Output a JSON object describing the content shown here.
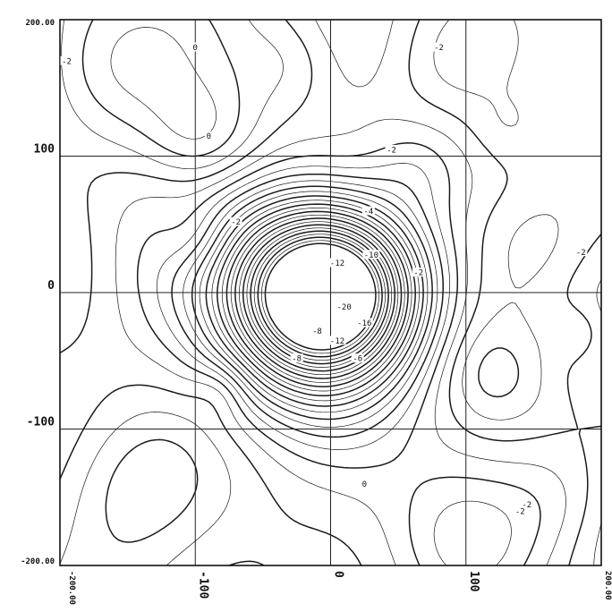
{
  "chart_data": {
    "type": "contour",
    "title": "",
    "xlabel": "",
    "ylabel": "",
    "xlim": [
      -200,
      200
    ],
    "ylim": [
      -200,
      200
    ],
    "grid": true,
    "x_ticks": [
      {
        "value": -200,
        "label": "-200.00"
      },
      {
        "value": -100,
        "label": "-100"
      },
      {
        "value": 0,
        "label": "0"
      },
      {
        "value": 100,
        "label": "100"
      },
      {
        "value": 200,
        "label": "200.00"
      }
    ],
    "y_ticks": [
      {
        "value": 200,
        "label": "200.00"
      },
      {
        "value": 100,
        "label": "100"
      },
      {
        "value": 0,
        "label": "0"
      },
      {
        "value": -100,
        "label": "-100"
      },
      {
        "value": -200,
        "label": "-200.00"
      }
    ],
    "contour_labels": [
      {
        "x": -100,
        "y": 180,
        "text": "0"
      },
      {
        "x": -195,
        "y": 170,
        "text": "-2"
      },
      {
        "x": 80,
        "y": 180,
        "text": "-2"
      },
      {
        "x": -90,
        "y": 115,
        "text": "0"
      },
      {
        "x": 45,
        "y": 105,
        "text": "-2"
      },
      {
        "x": -70,
        "y": 52,
        "text": "-2"
      },
      {
        "x": 28,
        "y": 60,
        "text": "-4"
      },
      {
        "x": 30,
        "y": 28,
        "text": "-10"
      },
      {
        "x": 5,
        "y": 22,
        "text": "-12"
      },
      {
        "x": 65,
        "y": 15,
        "text": "-2"
      },
      {
        "x": 10,
        "y": -10,
        "text": "-20"
      },
      {
        "x": 25,
        "y": -22,
        "text": "-16"
      },
      {
        "x": 5,
        "y": -35,
        "text": "-12"
      },
      {
        "x": -10,
        "y": -28,
        "text": "-8"
      },
      {
        "x": -25,
        "y": -48,
        "text": "-8"
      },
      {
        "x": 20,
        "y": -48,
        "text": "-6"
      },
      {
        "x": 185,
        "y": 30,
        "text": "-2"
      },
      {
        "x": 25,
        "y": -140,
        "text": "0"
      },
      {
        "x": 145,
        "y": -155,
        "text": "-2"
      },
      {
        "x": 140,
        "y": -160,
        "text": "-2"
      }
    ]
  }
}
